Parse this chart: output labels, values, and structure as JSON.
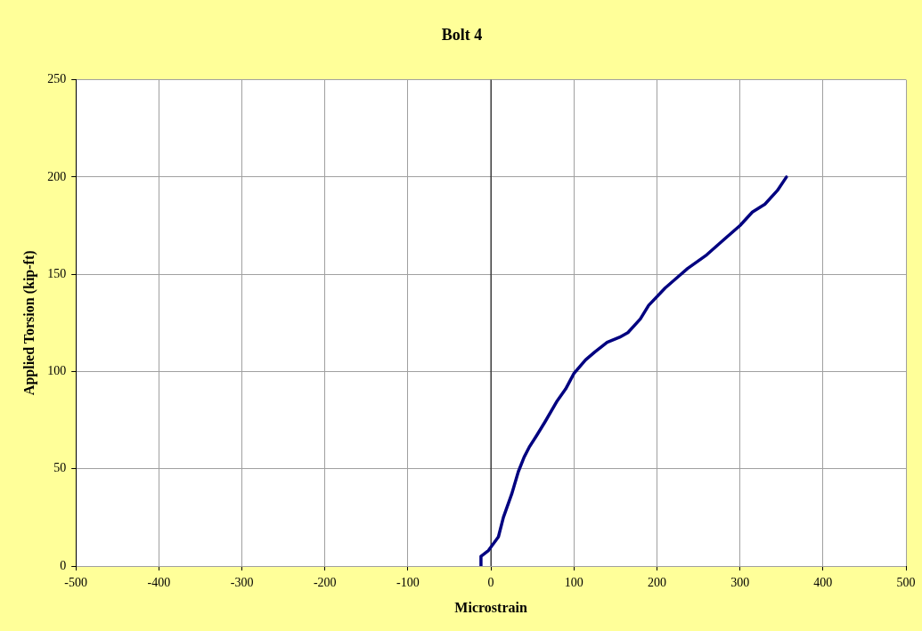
{
  "chart_data": {
    "type": "line",
    "title": "Bolt 4",
    "xlabel": "Microstrain",
    "ylabel": "Applied Torsion (kip-ft)",
    "series": [
      {
        "color": "#000080",
        "x": [
          -12,
          -12,
          -3,
          9,
          15,
          25,
          33,
          40,
          46,
          55,
          65,
          80,
          90,
          100,
          114,
          125,
          140,
          155,
          165,
          180,
          190,
          210,
          237,
          260,
          280,
          300,
          315,
          330,
          345,
          356
        ],
        "values": [
          0,
          5,
          8,
          15,
          25,
          37,
          48.5,
          56,
          61,
          67,
          74,
          85,
          91,
          99,
          106,
          110,
          115,
          117.6,
          120,
          127,
          134,
          143,
          153,
          160,
          167.6,
          175,
          182,
          186,
          193,
          200
        ]
      }
    ],
    "xlim": [
      -500,
      500
    ],
    "xticks": [
      -500,
      -400,
      -300,
      -200,
      -100,
      0,
      100,
      200,
      300,
      400,
      500
    ],
    "ylim": [
      0,
      250
    ],
    "yticks": [
      0,
      50,
      100,
      150,
      200,
      250
    ],
    "grid": true,
    "legend": false,
    "marker": "none",
    "line_style": "solid"
  }
}
